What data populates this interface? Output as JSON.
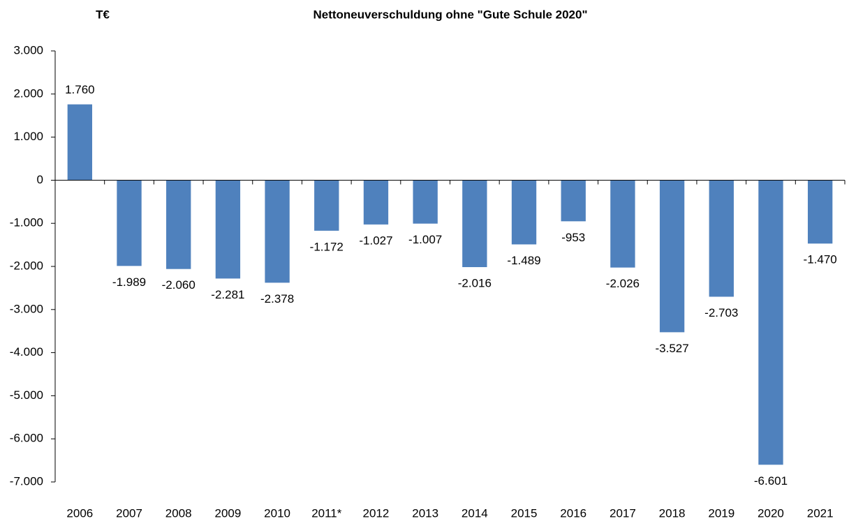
{
  "chart_data": {
    "type": "bar",
    "title": "Nettoneuverschuldung ohne \"Gute Schule 2020\"",
    "y_label": "T€",
    "categories": [
      "2006",
      "2007",
      "2008",
      "2009",
      "2010",
      "2011*",
      "2012",
      "2013",
      "2014",
      "2015",
      "2016",
      "2017",
      "2018",
      "2019",
      "2020",
      "2021"
    ],
    "values": [
      1760,
      -1989,
      -2060,
      -2281,
      -2378,
      -1172,
      -1027,
      -1007,
      -2016,
      -1489,
      -953,
      -2026,
      -3527,
      -2703,
      -6601,
      -1470
    ],
    "value_labels": [
      "1.760",
      "-1.989",
      "-2.060",
      "-2.281",
      "-2.378",
      "-1.172",
      "-1.027",
      "-1.007",
      "-2.016",
      "-1.489",
      "-953",
      "-2.026",
      "-3.527",
      "-2.703",
      "-6.601",
      "-1.470"
    ],
    "color": "#4f81bd",
    "ylim": [
      -7000,
      3000
    ],
    "yticks": [
      {
        "value": -7000,
        "label": "-7.000"
      },
      {
        "value": -6000,
        "label": "-6.000"
      },
      {
        "value": -5000,
        "label": "-5.000"
      },
      {
        "value": -4000,
        "label": "-4.000"
      },
      {
        "value": -3000,
        "label": "-3.000"
      },
      {
        "value": -2000,
        "label": "-2.000"
      },
      {
        "value": -1000,
        "label": "-1.000"
      },
      0,
      {
        "value": 1000,
        "label": "1.000"
      },
      {
        "value": 2000,
        "label": "2.000"
      },
      {
        "value": 3000,
        "label": "3.000"
      }
    ],
    "grid": false
  }
}
